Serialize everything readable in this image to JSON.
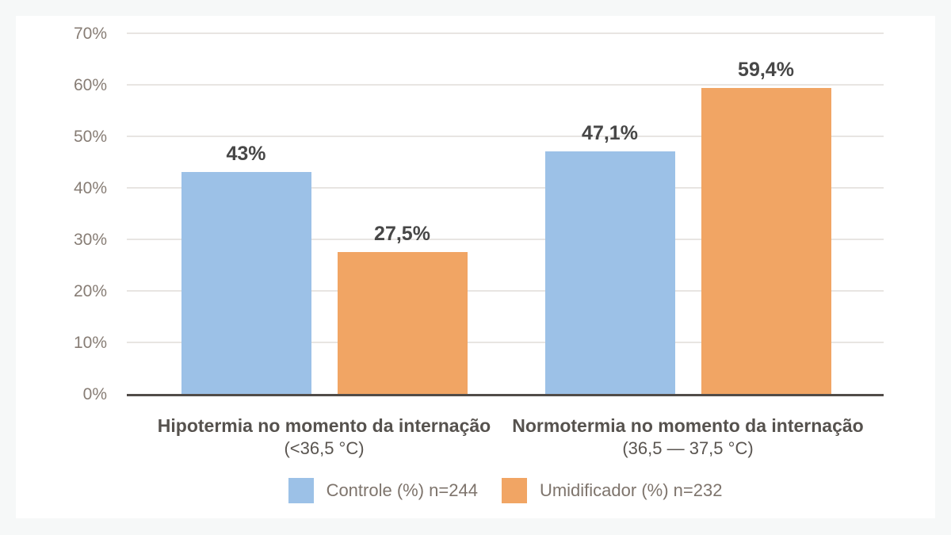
{
  "chart_data": {
    "type": "bar",
    "title": "",
    "categories": [
      {
        "title": "Hipotermia no momento da internação",
        "subtitle": "(<36,5 °C)"
      },
      {
        "title": "Normotermia no momento da internação",
        "subtitle": "(36,5 — 37,5 °C)"
      }
    ],
    "series": [
      {
        "name": "Controle (%) n=244",
        "color": "#9CC1E7",
        "values": [
          43,
          47.1
        ],
        "value_labels": [
          "43%",
          "47,1%"
        ]
      },
      {
        "name": "Umidificador (%) n=232",
        "color": "#F1A564",
        "values": [
          27.5,
          59.4
        ],
        "value_labels": [
          "27,5%",
          "59,4%"
        ]
      }
    ],
    "ylabel": "",
    "xlabel": "",
    "ylim": [
      0,
      70
    ],
    "ytick_step": 10,
    "ytick_labels": [
      "0%",
      "10%",
      "20%",
      "30%",
      "40%",
      "50%",
      "60%",
      "70%"
    ],
    "grid": true,
    "legend_position": "bottom"
  },
  "colors": {
    "page_background": "#F6F8F8",
    "panel_background": "#FFFFFF",
    "gridline": "#E8E5E2",
    "axis_line": "#514C48",
    "ytick_text": "#877D75",
    "value_label_text": "#474747",
    "category_text": "#56524E",
    "legend_text": "#7E746C",
    "series_blue": "#9CC1E7",
    "series_orange": "#F1A564"
  }
}
